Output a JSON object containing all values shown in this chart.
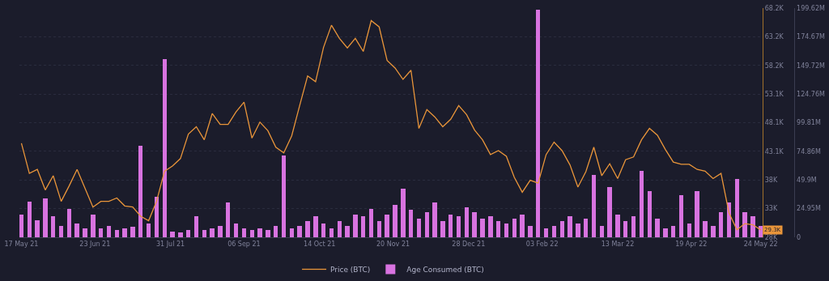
{
  "chart_data": {
    "type": "line",
    "x": [
      "2021-05-17",
      "2021-05-21",
      "2021-05-25",
      "2021-05-29",
      "2021-06-02",
      "2021-06-06",
      "2021-06-10",
      "2021-06-14",
      "2021-06-18",
      "2021-06-22",
      "2021-06-26",
      "2021-06-30",
      "2021-07-04",
      "2021-07-08",
      "2021-07-12",
      "2021-07-16",
      "2021-07-20",
      "2021-07-24",
      "2021-07-28",
      "2021-08-01",
      "2021-08-05",
      "2021-08-09",
      "2021-08-13",
      "2021-08-17",
      "2021-08-21",
      "2021-08-25",
      "2021-08-29",
      "2021-09-02",
      "2021-09-06",
      "2021-09-10",
      "2021-09-14",
      "2021-09-18",
      "2021-09-22",
      "2021-09-26",
      "2021-09-30",
      "2021-10-04",
      "2021-10-08",
      "2021-10-12",
      "2021-10-16",
      "2021-10-20",
      "2021-10-24",
      "2021-10-28",
      "2021-11-01",
      "2021-11-05",
      "2021-11-09",
      "2021-11-13",
      "2021-11-17",
      "2021-11-21",
      "2021-11-25",
      "2021-11-29",
      "2021-12-03",
      "2021-12-07",
      "2021-12-11",
      "2021-12-15",
      "2021-12-19",
      "2021-12-23",
      "2021-12-27",
      "2021-12-31",
      "2022-01-04",
      "2022-01-08",
      "2022-01-12",
      "2022-01-16",
      "2022-01-20",
      "2022-01-24",
      "2022-01-28",
      "2022-02-01",
      "2022-02-05",
      "2022-02-09",
      "2022-02-13",
      "2022-02-17",
      "2022-02-21",
      "2022-02-25",
      "2022-03-01",
      "2022-03-05",
      "2022-03-09",
      "2022-03-13",
      "2022-03-17",
      "2022-03-21",
      "2022-03-25",
      "2022-03-29",
      "2022-04-02",
      "2022-04-06",
      "2022-04-10",
      "2022-04-14",
      "2022-04-18",
      "2022-04-22",
      "2022-04-26",
      "2022-04-30",
      "2022-05-04",
      "2022-05-08",
      "2022-05-12",
      "2022-05-16",
      "2022-05-20",
      "2022-05-24"
    ],
    "series": [
      {
        "name": "Age Consumed (BTC)",
        "type": "bar",
        "axis": "y2",
        "color": "#d873e0",
        "values": [
          20000000,
          31000000,
          15000000,
          34000000,
          18000000,
          10000000,
          25000000,
          12000000,
          8000000,
          20000000,
          8000000,
          10000000,
          6000000,
          8000000,
          9000000,
          80000000,
          12000000,
          35000000,
          155000000,
          5000000,
          4000000,
          6000000,
          18000000,
          6000000,
          8000000,
          10000000,
          30000000,
          12000000,
          8000000,
          6000000,
          8000000,
          6000000,
          10000000,
          71000000,
          8000000,
          10000000,
          14000000,
          18000000,
          12000000,
          8000000,
          14000000,
          10000000,
          20000000,
          18000000,
          25000000,
          14000000,
          20000000,
          28000000,
          42000000,
          24000000,
          16000000,
          22000000,
          30000000,
          14000000,
          20000000,
          18000000,
          26000000,
          22000000,
          16000000,
          18000000,
          14000000,
          12000000,
          16000000,
          20000000,
          10000000,
          198000000,
          8000000,
          10000000,
          14000000,
          18000000,
          12000000,
          16000000,
          54000000,
          10000000,
          44000000,
          20000000,
          14000000,
          18000000,
          58000000,
          40000000,
          16000000,
          8000000,
          10000000,
          37000000,
          12000000,
          40000000,
          14000000,
          10000000,
          22000000,
          30000000,
          51000000,
          22000000,
          18000000,
          10000000
        ]
      },
      {
        "name": "Price (BTC)",
        "color": "#e9953a",
        "values": [
          44500,
          39200,
          39900,
          36300,
          38800,
          34300,
          37000,
          39900,
          36600,
          33300,
          34300,
          34300,
          34900,
          33500,
          33300,
          31700,
          30900,
          34300,
          39600,
          40500,
          41800,
          46100,
          47400,
          45100,
          49700,
          47800,
          47800,
          50000,
          51700,
          45400,
          48200,
          46700,
          43800,
          42800,
          45800,
          51100,
          56300,
          55300,
          61300,
          65200,
          62900,
          61200,
          62900,
          60600,
          66000,
          64900,
          59000,
          57700,
          55700,
          57300,
          47100,
          50400,
          49100,
          47400,
          48700,
          51100,
          49500,
          46800,
          45100,
          42500,
          43200,
          42200,
          38500,
          35900,
          38000,
          37500,
          42500,
          44700,
          43200,
          40700,
          36800,
          39500,
          43800,
          38800,
          40900,
          38300,
          41600,
          42100,
          45100,
          47100,
          45900,
          43400,
          41200,
          40800,
          40800,
          39900,
          39600,
          38300,
          39200,
          32300,
          29300,
          30400,
          30200,
          29300
        ]
      }
    ],
    "xlim": [
      "2021-05-16",
      "2022-05-25"
    ],
    "xticks": [
      {
        "value": "2021-05-17",
        "label": "17 May 21"
      },
      {
        "value": "2021-06-23",
        "label": "23 Jun 21"
      },
      {
        "value": "2021-07-31",
        "label": "31 Jul 21"
      },
      {
        "value": "2021-09-06",
        "label": "06 Sep 21"
      },
      {
        "value": "2021-10-14",
        "label": "14 Oct 21"
      },
      {
        "value": "2021-11-20",
        "label": "20 Nov 21"
      },
      {
        "value": "2021-12-28",
        "label": "28 Dec 21"
      },
      {
        "value": "2022-02-03",
        "label": "03 Feb 22"
      },
      {
        "value": "2022-03-13",
        "label": "13 Mar 22"
      },
      {
        "value": "2022-04-19",
        "label": "19 Apr 22"
      },
      {
        "value": "2022-05-24",
        "label": "24 May 22"
      }
    ],
    "ylim": [
      28000,
      68200
    ],
    "yticks": [
      {
        "value": 28000,
        "label": "28K"
      },
      {
        "value": 33025,
        "label": "33K"
      },
      {
        "value": 38050,
        "label": "38K"
      },
      {
        "value": 43075,
        "label": "43.1K"
      },
      {
        "value": 48100,
        "label": "48.1K"
      },
      {
        "value": 53125,
        "label": "53.1K"
      },
      {
        "value": 58150,
        "label": "58.2K"
      },
      {
        "value": 63175,
        "label": "63.2K"
      },
      {
        "value": 68200,
        "label": "68.2K"
      }
    ],
    "y2lim": [
      0,
      199620000
    ],
    "y2ticks": [
      {
        "value": 0,
        "label": "0"
      },
      {
        "value": 24952500,
        "label": "24.95M"
      },
      {
        "value": 49905000,
        "label": "49.9M"
      },
      {
        "value": 74857500,
        "label": "74.86M"
      },
      {
        "value": 99810000,
        "label": "99.81M"
      },
      {
        "value": 124762500,
        "label": "124.76M"
      },
      {
        "value": 149715000,
        "label": "149.72M"
      },
      {
        "value": 174667500,
        "label": "174.67M"
      },
      {
        "value": 199620000,
        "label": "199.62M"
      }
    ],
    "annotations": [
      {
        "text": "29.3K",
        "x": "2022-05-24",
        "y": 29300
      }
    ],
    "legend": "bottom",
    "grid": "y",
    "marker": "none",
    "line_style": "solid"
  }
}
